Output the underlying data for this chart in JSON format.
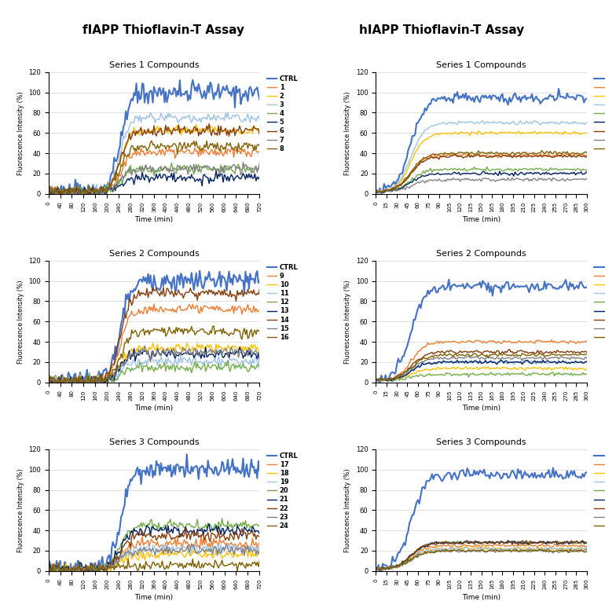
{
  "title_left": "fIAPP Thioflavin-T Assay",
  "title_right": "hIAPP Thioflavin-T Assay",
  "subplot_titles": [
    "Series 1 Compounds",
    "Series 2 Compounds",
    "Series 3 Compounds"
  ],
  "ylabel": "Fluorescence Intensity (%)",
  "xlabel": "Time (min)",
  "ylim": [
    0,
    120
  ],
  "yticks": [
    0,
    20,
    40,
    60,
    80,
    100,
    120
  ],
  "fIAPP_xticks": [
    0,
    40,
    80,
    120,
    160,
    200,
    240,
    280,
    320,
    360,
    400,
    440,
    480,
    520,
    560,
    600,
    640,
    680,
    720
  ],
  "hIAPP_xticks": [
    0,
    15,
    30,
    45,
    60,
    75,
    90,
    105,
    120,
    135,
    150,
    165,
    180,
    195,
    210,
    225,
    240,
    255,
    270,
    285,
    300
  ],
  "series1_keys": [
    "CTRL",
    "1",
    "2",
    "3",
    "4",
    "5",
    "6",
    "7",
    "8"
  ],
  "series2_keys": [
    "CTRL",
    "9",
    "10",
    "11",
    "12",
    "13",
    "14",
    "15",
    "16"
  ],
  "series3_keys": [
    "CTRL",
    "17",
    "18",
    "19",
    "20",
    "21",
    "22",
    "23",
    "24"
  ],
  "series_colors": [
    "#4472C4",
    "#ED7D31",
    "#FFC000",
    "#9DC3E6",
    "#70AD47",
    "#002060",
    "#843C0C",
    "#808080",
    "#806000"
  ],
  "fIAPP_s1_plateaus": [
    100,
    41,
    63,
    75,
    25,
    16,
    62,
    25,
    47
  ],
  "fIAPP_s2_plateaus": [
    100,
    72,
    34,
    21,
    15,
    28,
    88,
    30,
    50
  ],
  "fIAPP_s3_plateaus": [
    100,
    27,
    16,
    22,
    45,
    40,
    35,
    20,
    6
  ],
  "hIAPP_s1_plateaus": [
    95,
    38,
    60,
    70,
    24,
    20,
    37,
    14,
    40
  ],
  "hIAPP_s2_plateaus": [
    95,
    40,
    14,
    20,
    8,
    20,
    30,
    24,
    27
  ],
  "hIAPP_s3_plateaus": [
    95,
    25,
    22,
    22,
    28,
    28,
    28,
    20,
    20
  ]
}
